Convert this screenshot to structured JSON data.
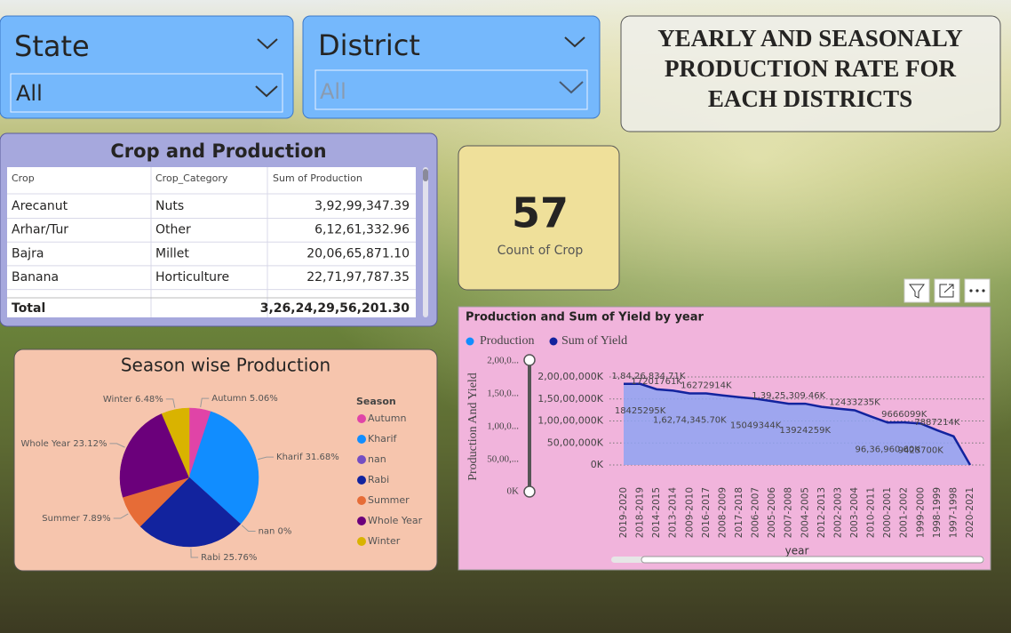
{
  "slicers": [
    {
      "label": "State",
      "value": "All"
    },
    {
      "label": "District",
      "value": "All"
    }
  ],
  "header": {
    "title_lines": [
      "YEARLY AND SEASONALY",
      "PRODUCTION RATE FOR",
      "EACH DISTRICTS"
    ]
  },
  "table": {
    "title": "Crop and Production",
    "columns": [
      "Crop",
      "Crop_Category",
      "Sum of Production"
    ],
    "rows": [
      [
        "Arecanut",
        "Nuts",
        "3,92,99,347.39"
      ],
      [
        "Arhar/Tur",
        "Other",
        "6,12,61,332.96"
      ],
      [
        "Bajra",
        "Millet",
        "20,06,65,871.10"
      ],
      [
        "Banana",
        "Horticulture",
        "22,71,97,787.35"
      ]
    ],
    "total": {
      "label": "Total",
      "value": "3,26,24,29,56,201.30"
    }
  },
  "card": {
    "value": "57",
    "label": "Count of Crop"
  },
  "chart_data": [
    {
      "type": "pie",
      "title": "Season wise Production",
      "legend_title": "Season",
      "categories": [
        "Autumn",
        "Kharif",
        "nan",
        "Rabi",
        "Summer",
        "Whole Year",
        "Winter"
      ],
      "values": [
        5.06,
        31.68,
        0,
        25.76,
        7.89,
        23.12,
        6.48
      ],
      "value_labels": [
        "Autumn 5.06%",
        "Kharif 31.68%",
        "nan 0%",
        "Rabi 25.76%",
        "Summer 7.89%",
        "Whole Year 23.12%",
        "Winter 6.48%"
      ],
      "colors": [
        "#e044a7",
        "#118dff",
        "#744ec2",
        "#12239e",
        "#e66c37",
        "#6b007b",
        "#d9b300"
      ]
    },
    {
      "type": "area",
      "title": "Production and Sum of Yield by year",
      "legend": [
        {
          "name": "Production",
          "color": "#118dff"
        },
        {
          "name": "Sum of Yield",
          "color": "#12239e"
        }
      ],
      "y_label": "Production And Yield",
      "x_label": "year",
      "categories": [
        "2019-2020",
        "2018-2019",
        "2014-2015",
        "2013-2014",
        "2009-2010",
        "2016-2017",
        "2008-2009",
        "2017-2018",
        "2006-2007",
        "2005-2006",
        "2007-2008",
        "2004-2005",
        "2012-2013",
        "2002-2003",
        "2003-2004",
        "2010-2011",
        "2000-2001",
        "2001-2002",
        "1999-2000",
        "1998-1999",
        "1997-1998",
        "2020-2021"
      ],
      "values": [
        18426834.71,
        18425295,
        17201761,
        16900000,
        16274345.7,
        16272914,
        15800000,
        15400000,
        15049344,
        14500000,
        13925309.46,
        13924259,
        13200000,
        12800000,
        12433235,
        11000000,
        9636960.6,
        9666099,
        9423700,
        7887214,
        6500000,
        0
      ],
      "value_labels": [
        "1,84,26,834.71K",
        "18425295K",
        "17201761K",
        null,
        "1,62,74,345.70K",
        "16272914K",
        null,
        null,
        "15049344K",
        null,
        "1,39,25,309.46K",
        "13924259K",
        null,
        null,
        "12433235K",
        null,
        "96,36,960.60K",
        "9666099K",
        "9423700K",
        "7887214K",
        null,
        null
      ],
      "fill": "#8fa3f2",
      "line_color": "#12239e",
      "ylim": [
        0,
        20000000
      ],
      "yticks": [
        {
          "value": 0,
          "label": "0K"
        },
        {
          "value": 5000000,
          "label": "50,00,000K"
        },
        {
          "value": 10000000,
          "label": "1,00,00,000K"
        },
        {
          "value": 15000000,
          "label": "1,50,00,000K"
        },
        {
          "value": 20000000,
          "label": "2,00,00,000K"
        }
      ],
      "grid": true,
      "zoom_slider_labels": [
        "2,00,0...",
        "1,50,0...",
        "1,00,0...",
        "50,00,...",
        "0K"
      ]
    }
  ]
}
